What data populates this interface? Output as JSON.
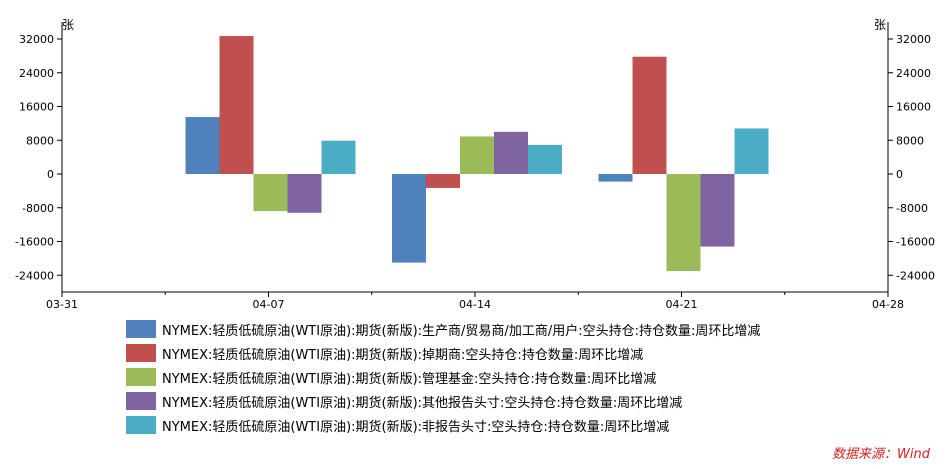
{
  "chart_data": {
    "type": "bar",
    "y_unit_left": "张",
    "y_unit_right": "张",
    "ylim": [
      -28000,
      34000
    ],
    "yticks": [
      32000,
      24000,
      16000,
      8000,
      0,
      -8000,
      -16000,
      -24000
    ],
    "xticks": [
      "03-31",
      "04-07",
      "04-14",
      "04-21",
      "04-28"
    ],
    "categories": [
      "04-07",
      "04-14",
      "04-21"
    ],
    "series": [
      {
        "name": "NYMEX:轻质低硫原油(WTI原油):期货(新版):生产商/贸易商/加工商/用户:空头持仓:持仓数量:周环比增减",
        "color": "#4f81bd",
        "values": [
          13500,
          -21000,
          -1800
        ]
      },
      {
        "name": "NYMEX:轻质低硫原油(WTI原油):期货(新版):掉期商:空头持仓:持仓数量:周环比增减",
        "color": "#c0504d",
        "values": [
          32700,
          -3300,
          27800
        ]
      },
      {
        "name": "NYMEX:轻质低硫原油(WTI原油):期货(新版):管理基金:空头持仓:持仓数量:周环比增减",
        "color": "#9bbb59",
        "values": [
          -8800,
          8900,
          -23000
        ]
      },
      {
        "name": "NYMEX:轻质低硫原油(WTI原油):期货(新版):其他报告头寸:空头持仓:持仓数量:周环比增减",
        "color": "#8064a2",
        "values": [
          -9200,
          10000,
          -17200
        ]
      },
      {
        "name": "NYMEX:轻质低硫原油(WTI原油):期货(新版):非报告头寸:空头持仓:持仓数量:周环比增减",
        "color": "#4bacc6",
        "values": [
          7900,
          6900,
          10800
        ]
      }
    ],
    "legend_position": "bottom",
    "grid": false
  },
  "source_text": "数据来源：Wind"
}
